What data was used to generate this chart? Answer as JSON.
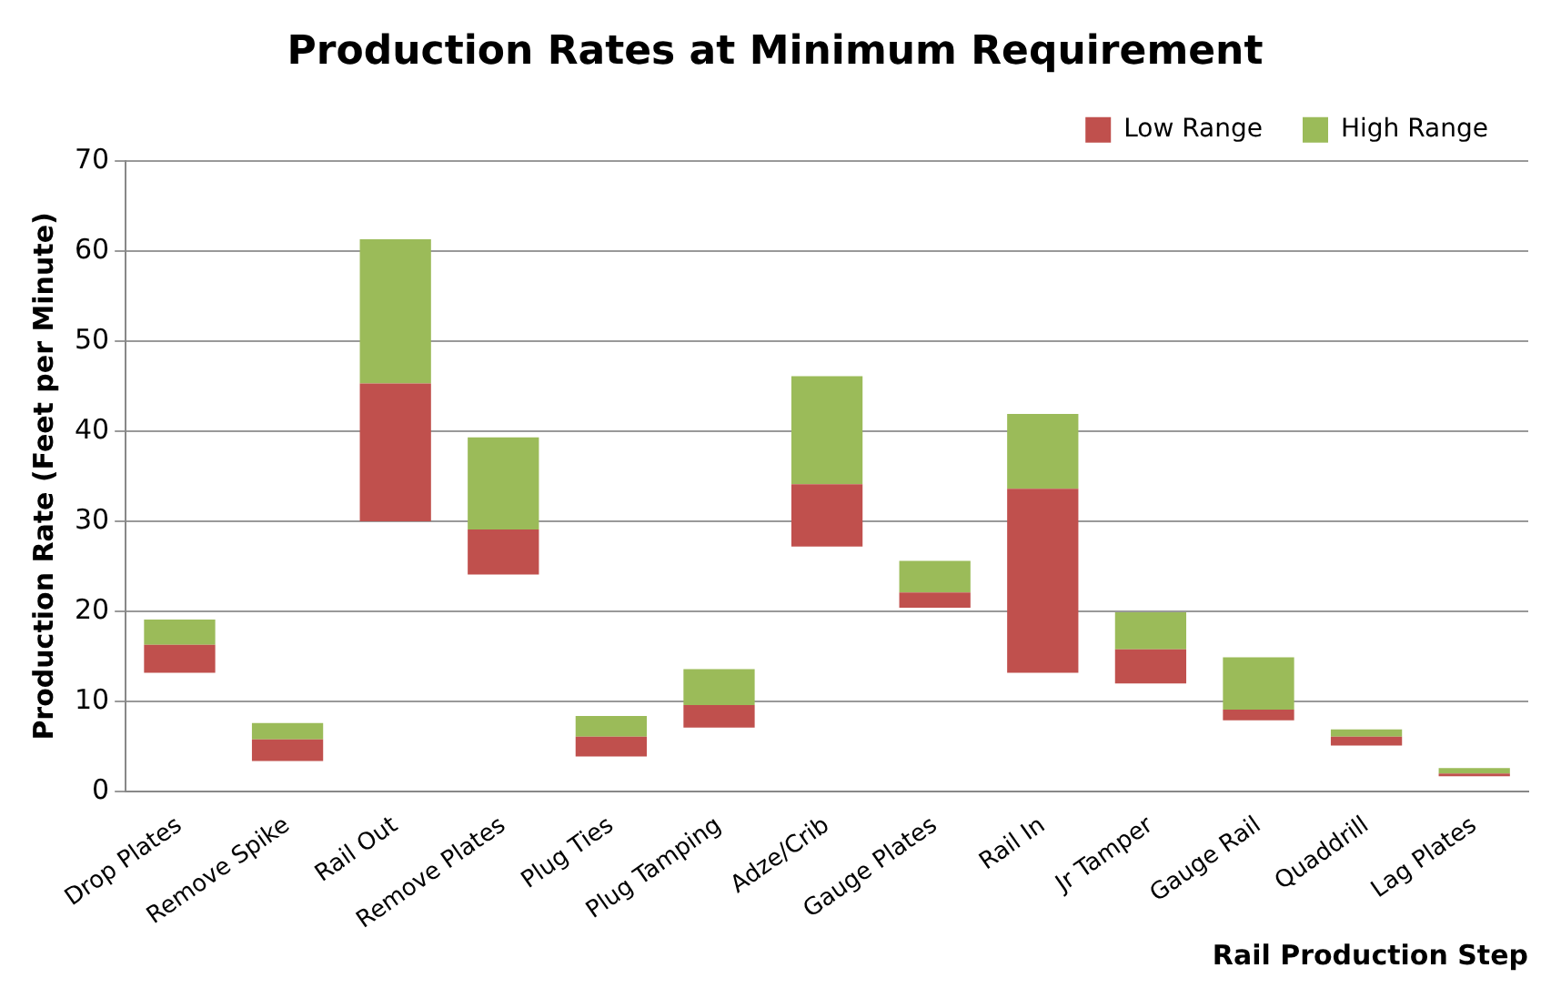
{
  "chart_data": {
    "type": "bar",
    "title": "Production Rates at Minimum Requirement",
    "xlabel": "Rail Production Step",
    "ylabel": "Production Rate (Feet per Minute)",
    "categories": [
      "Drop Plates",
      "Remove Spike",
      "Rail Out",
      "Remove Plates",
      "Plug Ties",
      "Plug Tamping",
      "Adze/Crib",
      "Gauge Plates",
      "Rail In",
      "Jr Tamper",
      "Gauge Rail",
      "Quaddrill",
      "Lag Plates"
    ],
    "series": [
      {
        "name": "Low Range",
        "color": "#c0504d",
        "base": [
          13.2,
          3.4,
          30,
          24.1,
          3.9,
          7.1,
          27.2,
          20.4,
          13.2,
          12,
          7.9,
          5.1,
          1.7
        ],
        "values": [
          3.1,
          2.4,
          15.3,
          5,
          2.2,
          2.5,
          6.9,
          1.7,
          20.4,
          3.8,
          1.2,
          1,
          0.3
        ]
      },
      {
        "name": "High Range",
        "color": "#9bbb59",
        "base": [
          16.3,
          5.8,
          45.3,
          29.1,
          6.1,
          9.6,
          34.1,
          22.1,
          33.6,
          15.8,
          9.1,
          6.1,
          2
        ],
        "values": [
          2.8,
          1.8,
          16,
          10.2,
          2.3,
          4,
          12,
          3.5,
          8.3,
          4.1,
          5.8,
          0.8,
          0.6
        ]
      }
    ],
    "ylim": [
      0,
      70
    ],
    "yticks": [
      0,
      10,
      20,
      30,
      40,
      50,
      60,
      70
    ],
    "grid": "y",
    "legend": "top right"
  }
}
